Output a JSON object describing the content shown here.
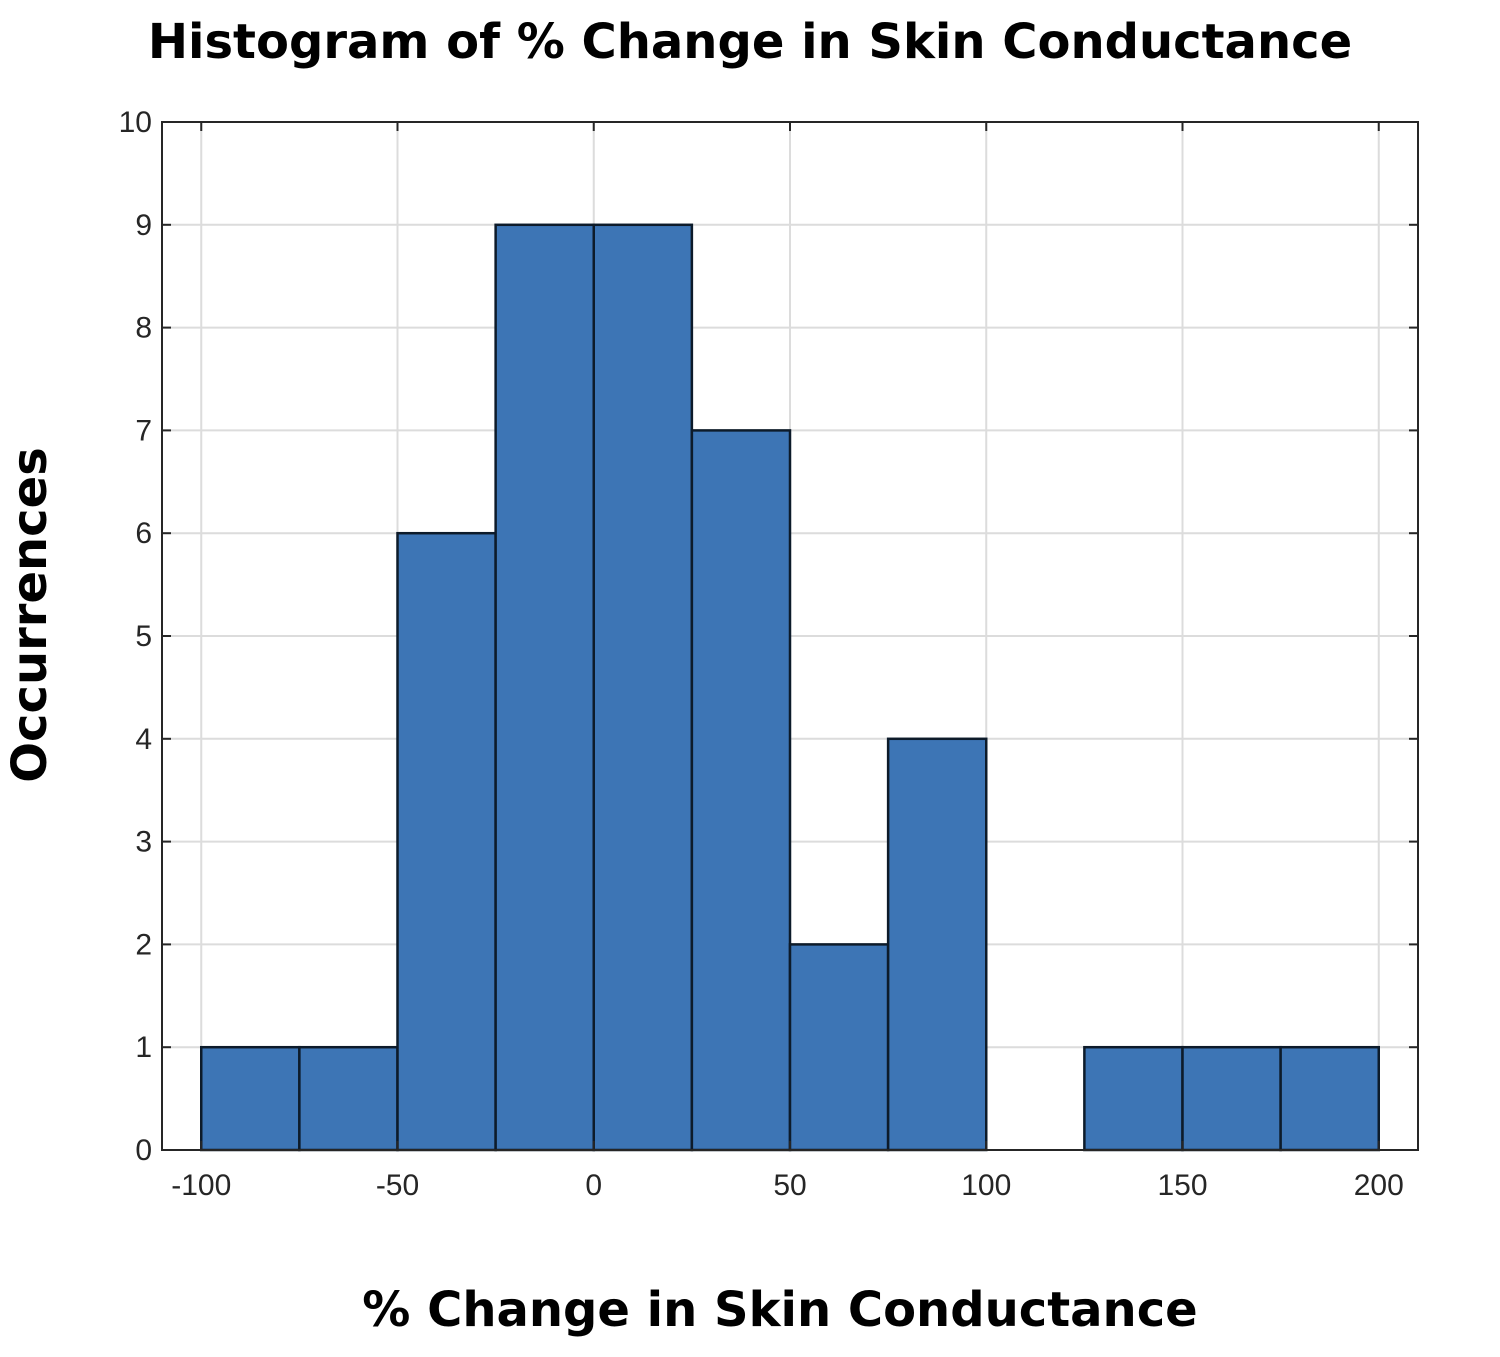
{
  "chart_data": {
    "type": "bar",
    "title": "Histogram of % Change in Skin Conductance",
    "xlabel": "% Change in Skin Conductance",
    "ylabel": "Occurrences",
    "bin_edges": [
      -100,
      -75,
      -50,
      -25,
      0,
      25,
      50,
      75,
      100,
      125,
      150,
      175,
      200
    ],
    "values": [
      1,
      1,
      6,
      9,
      9,
      7,
      2,
      4,
      0,
      1,
      1,
      1
    ],
    "xlim": [
      -110,
      210
    ],
    "ylim": [
      0,
      10
    ],
    "xticks": [
      -100,
      -50,
      0,
      50,
      100,
      150,
      200
    ],
    "yticks": [
      0,
      1,
      2,
      3,
      4,
      5,
      6,
      7,
      8,
      9,
      10
    ],
    "grid": true,
    "bar_color": "#3d75b5",
    "edge_color": "#0d1b2a"
  }
}
